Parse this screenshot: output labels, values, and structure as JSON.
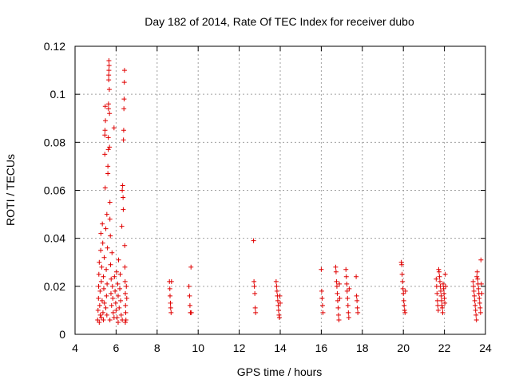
{
  "chart_data": {
    "type": "scatter",
    "title": "Day 182 of 2014, Rate Of TEC Index for receiver dubo",
    "xlabel": "GPS time / hours",
    "ylabel": "ROTI / TECUs",
    "xlim": [
      4,
      24
    ],
    "ylim": [
      0,
      0.12
    ],
    "xticks": [
      "4",
      "6",
      "8",
      "10",
      "12",
      "14",
      "16",
      "18",
      "20",
      "22",
      "24"
    ],
    "yticks": [
      "0",
      "0.02",
      "0.04",
      "0.06",
      "0.08",
      "0.1",
      "0.12"
    ],
    "grid": true,
    "legend": "none",
    "marker": "+",
    "color": "#e00000",
    "series": [
      {
        "points": [
          [
            5.1,
            0.006
          ],
          [
            5.12,
            0.01
          ],
          [
            5.14,
            0.015
          ],
          [
            5.15,
            0.02
          ],
          [
            5.16,
            0.025
          ],
          [
            5.18,
            0.03
          ],
          [
            5.2,
            0.012
          ],
          [
            5.22,
            0.018
          ],
          [
            5.23,
            0.008
          ],
          [
            5.25,
            0.035
          ],
          [
            5.26,
            0.042
          ],
          [
            5.28,
            0.022
          ],
          [
            5.3,
            0.028
          ],
          [
            5.32,
            0.014
          ],
          [
            5.33,
            0.046
          ],
          [
            5.35,
            0.038
          ],
          [
            5.36,
            0.009
          ],
          [
            5.38,
            0.024
          ],
          [
            5.4,
            0.019
          ],
          [
            5.42,
            0.032
          ],
          [
            5.43,
            0.013
          ],
          [
            5.45,
            0.075
          ],
          [
            5.45,
            0.083
          ],
          [
            5.46,
            0.085
          ],
          [
            5.47,
            0.095
          ],
          [
            5.47,
            0.061
          ],
          [
            5.48,
            0.089
          ],
          [
            5.5,
            0.044
          ],
          [
            5.5,
            0.011
          ],
          [
            5.52,
            0.027
          ],
          [
            5.53,
            0.016
          ],
          [
            5.55,
            0.05
          ],
          [
            5.56,
            0.021
          ],
          [
            5.58,
            0.036
          ],
          [
            5.6,
            0.067
          ],
          [
            5.6,
            0.07
          ],
          [
            5.62,
            0.077
          ],
          [
            5.62,
            0.082
          ],
          [
            5.63,
            0.094
          ],
          [
            5.63,
            0.096
          ],
          [
            5.64,
            0.106
          ],
          [
            5.64,
            0.108
          ],
          [
            5.65,
            0.11
          ],
          [
            5.65,
            0.114
          ],
          [
            5.66,
            0.112
          ],
          [
            5.67,
            0.102
          ],
          [
            5.68,
            0.092
          ],
          [
            5.68,
            0.078
          ],
          [
            5.7,
            0.055
          ],
          [
            5.7,
            0.048
          ],
          [
            5.72,
            0.041
          ],
          [
            5.73,
            0.029
          ],
          [
            5.75,
            0.017
          ],
          [
            5.76,
            0.023
          ],
          [
            5.78,
            0.012
          ],
          [
            5.8,
            0.034
          ],
          [
            5.82,
            0.02
          ],
          [
            5.84,
            0.015
          ],
          [
            5.86,
            0.009
          ],
          [
            5.9,
            0.086
          ],
          [
            5.92,
            0.024
          ],
          [
            5.95,
            0.018
          ],
          [
            5.98,
            0.013
          ],
          [
            6.0,
            0.01
          ],
          [
            6.02,
            0.026
          ],
          [
            6.05,
            0.007
          ],
          [
            6.08,
            0.021
          ],
          [
            6.1,
            0.016
          ],
          [
            6.12,
            0.031
          ],
          [
            6.15,
            0.011
          ],
          [
            6.18,
            0.019
          ],
          [
            6.2,
            0.025
          ],
          [
            6.22,
            0.014
          ],
          [
            6.25,
            0.008
          ],
          [
            6.28,
            0.045
          ],
          [
            6.3,
            0.06
          ],
          [
            6.32,
            0.062
          ],
          [
            6.34,
            0.057
          ],
          [
            6.35,
            0.052
          ],
          [
            6.36,
            0.081
          ],
          [
            6.37,
            0.085
          ],
          [
            6.38,
            0.094
          ],
          [
            6.39,
            0.098
          ],
          [
            6.4,
            0.105
          ],
          [
            6.41,
            0.11
          ],
          [
            6.42,
            0.037
          ],
          [
            6.43,
            0.028
          ],
          [
            6.44,
            0.022
          ],
          [
            6.45,
            0.017
          ],
          [
            6.46,
            0.012
          ],
          [
            6.47,
            0.009
          ],
          [
            6.48,
            0.006
          ],
          [
            6.5,
            0.02
          ],
          [
            6.52,
            0.015
          ],
          [
            5.18,
            0.005
          ],
          [
            5.28,
            0.007
          ],
          [
            5.38,
            0.006
          ],
          [
            5.55,
            0.008
          ],
          [
            5.7,
            0.006
          ],
          [
            5.9,
            0.007
          ],
          [
            6.1,
            0.005
          ],
          [
            6.3,
            0.006
          ],
          [
            6.45,
            0.005
          ],
          [
            8.6,
            0.022
          ],
          [
            8.62,
            0.019
          ],
          [
            8.63,
            0.016
          ],
          [
            8.65,
            0.013
          ],
          [
            8.66,
            0.011
          ],
          [
            8.68,
            0.009
          ],
          [
            8.7,
            0.022
          ],
          [
            9.55,
            0.02
          ],
          [
            9.58,
            0.016
          ],
          [
            9.6,
            0.012
          ],
          [
            9.62,
            0.009
          ],
          [
            9.65,
            0.028
          ],
          [
            9.67,
            0.009
          ],
          [
            12.7,
            0.039
          ],
          [
            12.72,
            0.022
          ],
          [
            12.74,
            0.02
          ],
          [
            12.76,
            0.017
          ],
          [
            12.78,
            0.011
          ],
          [
            12.8,
            0.009
          ],
          [
            13.8,
            0.022
          ],
          [
            13.82,
            0.02
          ],
          [
            13.84,
            0.018
          ],
          [
            13.86,
            0.016
          ],
          [
            13.88,
            0.014
          ],
          [
            13.9,
            0.012
          ],
          [
            13.92,
            0.01
          ],
          [
            13.94,
            0.008
          ],
          [
            13.96,
            0.007
          ],
          [
            13.98,
            0.016
          ],
          [
            14.0,
            0.013
          ],
          [
            16.0,
            0.027
          ],
          [
            16.02,
            0.018
          ],
          [
            16.04,
            0.015
          ],
          [
            16.06,
            0.012
          ],
          [
            16.08,
            0.009
          ],
          [
            16.7,
            0.028
          ],
          [
            16.72,
            0.026
          ],
          [
            16.74,
            0.022
          ],
          [
            16.76,
            0.02
          ],
          [
            16.78,
            0.017
          ],
          [
            16.8,
            0.014
          ],
          [
            16.82,
            0.011
          ],
          [
            16.84,
            0.008
          ],
          [
            16.86,
            0.006
          ],
          [
            16.88,
            0.021
          ],
          [
            16.9,
            0.015
          ],
          [
            17.2,
            0.027
          ],
          [
            17.22,
            0.024
          ],
          [
            17.24,
            0.021
          ],
          [
            17.26,
            0.018
          ],
          [
            17.28,
            0.015
          ],
          [
            17.3,
            0.012
          ],
          [
            17.32,
            0.009
          ],
          [
            17.34,
            0.007
          ],
          [
            17.36,
            0.019
          ],
          [
            17.7,
            0.024
          ],
          [
            17.72,
            0.016
          ],
          [
            17.74,
            0.014
          ],
          [
            17.76,
            0.011
          ],
          [
            17.78,
            0.009
          ],
          [
            19.9,
            0.03
          ],
          [
            19.92,
            0.029
          ],
          [
            19.94,
            0.025
          ],
          [
            19.96,
            0.022
          ],
          [
            19.98,
            0.019
          ],
          [
            20.0,
            0.017
          ],
          [
            20.02,
            0.014
          ],
          [
            20.04,
            0.012
          ],
          [
            20.06,
            0.01
          ],
          [
            20.08,
            0.009
          ],
          [
            20.1,
            0.018
          ],
          [
            21.6,
            0.023
          ],
          [
            21.62,
            0.02
          ],
          [
            21.64,
            0.017
          ],
          [
            21.66,
            0.014
          ],
          [
            21.68,
            0.012
          ],
          [
            21.7,
            0.01
          ],
          [
            21.72,
            0.027
          ],
          [
            21.74,
            0.026
          ],
          [
            21.76,
            0.024
          ],
          [
            21.78,
            0.022
          ],
          [
            21.8,
            0.02
          ],
          [
            21.82,
            0.018
          ],
          [
            21.84,
            0.016
          ],
          [
            21.86,
            0.014
          ],
          [
            21.88,
            0.012
          ],
          [
            21.9,
            0.011
          ],
          [
            21.92,
            0.009
          ],
          [
            21.94,
            0.021
          ],
          [
            21.96,
            0.019
          ],
          [
            21.98,
            0.017
          ],
          [
            22.0,
            0.015
          ],
          [
            22.02,
            0.013
          ],
          [
            22.04,
            0.025
          ],
          [
            22.06,
            0.02
          ],
          [
            23.4,
            0.022
          ],
          [
            23.42,
            0.02
          ],
          [
            23.44,
            0.018
          ],
          [
            23.46,
            0.016
          ],
          [
            23.48,
            0.014
          ],
          [
            23.5,
            0.012
          ],
          [
            23.52,
            0.01
          ],
          [
            23.54,
            0.008
          ],
          [
            23.56,
            0.006
          ],
          [
            23.58,
            0.024
          ],
          [
            23.6,
            0.026
          ],
          [
            23.62,
            0.023
          ],
          [
            23.64,
            0.021
          ],
          [
            23.66,
            0.019
          ],
          [
            23.68,
            0.017
          ],
          [
            23.7,
            0.015
          ],
          [
            23.72,
            0.013
          ],
          [
            23.74,
            0.011
          ],
          [
            23.76,
            0.009
          ],
          [
            23.78,
            0.031
          ],
          [
            23.8,
            0.021
          ],
          [
            23.82,
            0.017
          ]
        ]
      }
    ]
  }
}
